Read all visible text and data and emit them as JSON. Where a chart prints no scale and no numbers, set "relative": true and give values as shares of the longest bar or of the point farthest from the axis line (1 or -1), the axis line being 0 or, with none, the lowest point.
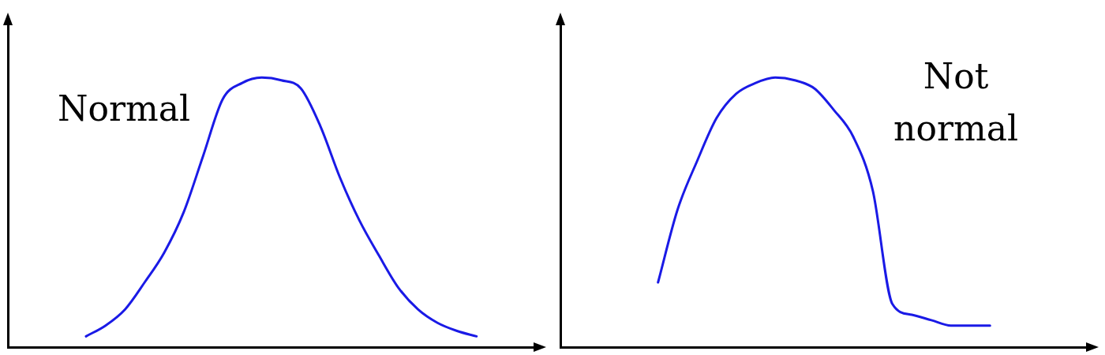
{
  "chart_data": [
    {
      "type": "line",
      "relative": true,
      "grid": false,
      "legend": false,
      "tick_labels": false,
      "marker": "none",
      "line_style": "solid",
      "categories": [
        null,
        null,
        null,
        null,
        null,
        null,
        null,
        null,
        null,
        null,
        null,
        null,
        null,
        null,
        null,
        null,
        null,
        null,
        null,
        null,
        null,
        null,
        null,
        null,
        null,
        null,
        null,
        null
      ],
      "series": [
        {
          "color": "#1a1ae6",
          "values": [
            null,
            null,
            null,
            null,
            0.04,
            0.08,
            0.14,
            0.24,
            0.35,
            0.5,
            0.71,
            0.92,
            0.98,
            1,
            0.99,
            0.96,
            0.82,
            0.63,
            0.47,
            0.34,
            0.22,
            0.14,
            0.09,
            0.06,
            0.04,
            null,
            null,
            null
          ]
        }
      ],
      "annotations": [
        "Normal"
      ]
    },
    {
      "type": "line",
      "relative": true,
      "grid": false,
      "legend": false,
      "tick_labels": false,
      "marker": "none",
      "line_style": "solid",
      "categories": [
        null,
        null,
        null,
        null,
        null,
        null,
        null,
        null,
        null,
        null,
        null,
        null,
        null,
        null,
        null,
        null,
        null,
        null,
        null,
        null,
        null,
        null,
        null,
        null,
        null,
        null,
        null,
        null
      ],
      "series": [
        {
          "color": "#1a1ae6",
          "values": [
            null,
            null,
            null,
            null,
            null,
            0.24,
            0.51,
            0.69,
            0.85,
            0.94,
            0.98,
            1,
            0.99,
            0.96,
            0.88,
            0.78,
            0.58,
            0.16,
            0.12,
            0.1,
            0.08,
            0.08,
            0.08,
            null,
            null,
            null,
            null,
            null
          ]
        }
      ],
      "annotations": [
        "Not normal"
      ]
    }
  ]
}
